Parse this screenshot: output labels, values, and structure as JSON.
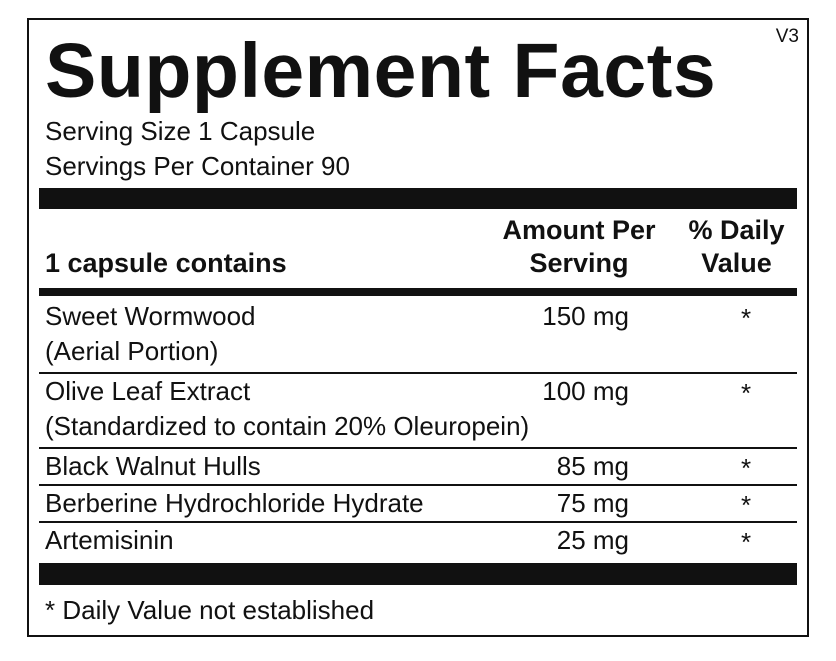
{
  "header": {
    "title": "Supplement Facts",
    "version": "V3"
  },
  "serving": {
    "size": "Serving Size 1 Capsule",
    "per_container": "Servings Per Container 90"
  },
  "table": {
    "columns": [
      "1 capsule contains",
      "Amount Per Serving",
      "% Daily Value"
    ],
    "rows": [
      {
        "name": "Sweet Wormwood",
        "detail": "(Aerial Portion)",
        "amount": "150 mg",
        "daily_value": "*"
      },
      {
        "name": "Olive Leaf Extract",
        "detail": "(Standardized to contain 20% Oleuropein)",
        "amount": "100 mg",
        "daily_value": "*"
      },
      {
        "name": "Black Walnut Hulls",
        "amount": "85 mg",
        "daily_value": "*"
      },
      {
        "name": "Berberine Hydrochloride Hydrate",
        "amount": "75 mg",
        "daily_value": "*"
      },
      {
        "name": "Artemisinin",
        "amount": "25 mg",
        "daily_value": "*"
      }
    ]
  },
  "footnote": "* Daily Value not established"
}
